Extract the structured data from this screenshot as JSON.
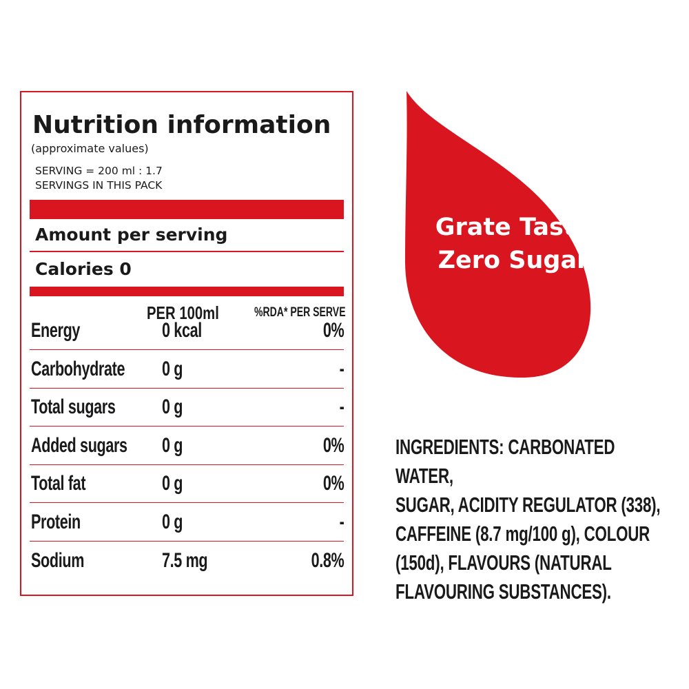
{
  "nutrition": {
    "title": "Nutrition information",
    "subtitle": "(approximate values)",
    "serving": "SERVING = 200 ml : 1.7\nSERVINGS  IN THIS PACK",
    "amount_label": "Amount per serving",
    "calories_label": "Calories 0",
    "col_per100": "PER 100ml",
    "col_rda": "%RDA* PER SERVE",
    "rows": [
      {
        "name": "Energy",
        "per100": "0 kcal",
        "rda": "0%"
      },
      {
        "name": "Carbohydrate",
        "per100": "0 g",
        "rda": "-"
      },
      {
        "name": "Total sugars",
        "per100": "0 g",
        "rda": "-"
      },
      {
        "name": "Added sugars",
        "per100": "0 g",
        "rda": "0%"
      },
      {
        "name": "Total fat",
        "per100": "0 g",
        "rda": "0%"
      },
      {
        "name": "Protein",
        "per100": "0 g",
        "rda": "-"
      },
      {
        "name": "Sodium",
        "per100": "7.5 mg",
        "rda": "0.8%"
      }
    ]
  },
  "badge": {
    "line1": "Grate Taste",
    "line2": "Zero Sugar"
  },
  "ingredients": {
    "text": "INGREDIENTS: CARBONATED WATER,\nSUGAR, ACIDITY  REGULATOR (338),\nCAFFEINE (8.7 mg/100 g), COLOUR\n(150d), FLAVOURS (NATURAL\nFLAVOURING SUBSTANCES)."
  },
  "colors": {
    "accent": "#d9151f",
    "text": "#1a1a1a"
  }
}
